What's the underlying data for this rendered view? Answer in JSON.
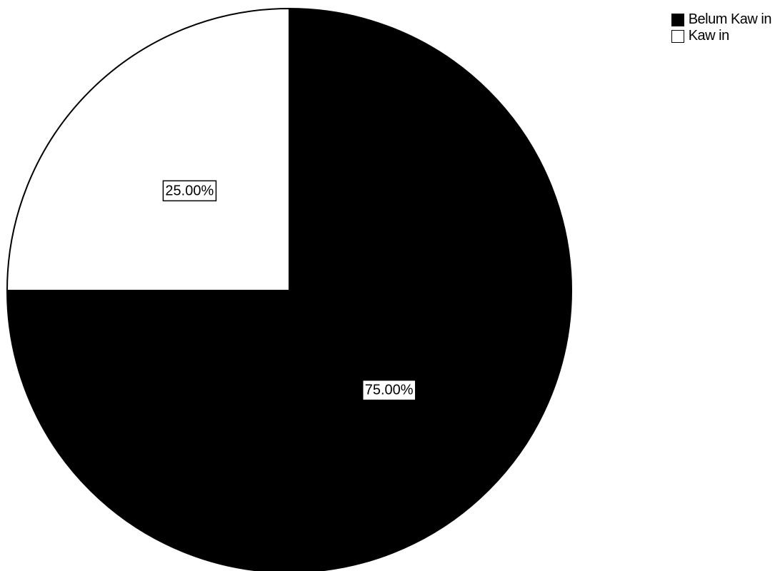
{
  "chart_data": {
    "type": "pie",
    "start": "top",
    "direction": "clockwise",
    "slices": [
      {
        "label": "Belum Kaw in",
        "value": 75.0,
        "display": "75.00%",
        "color": "#000000"
      },
      {
        "label": "Kaw in",
        "value": 25.0,
        "display": "25.00%",
        "color": "#ffffff"
      }
    ],
    "legend_position": "top-right"
  }
}
